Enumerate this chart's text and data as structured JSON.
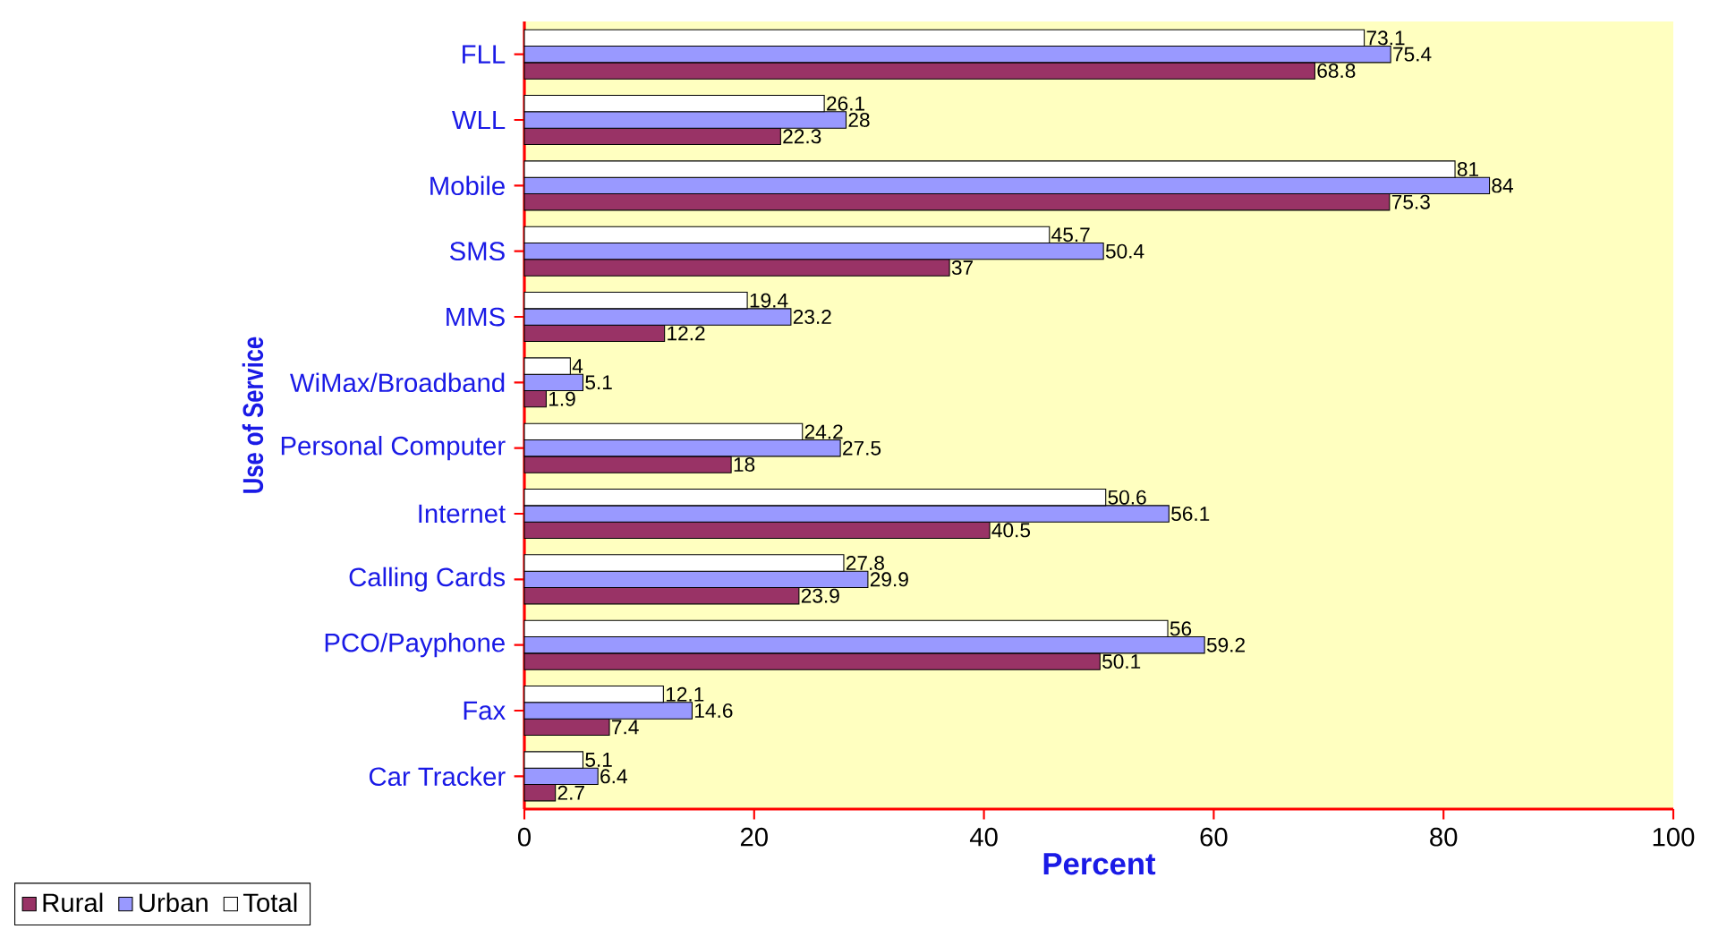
{
  "chart_data": {
    "type": "bar",
    "orientation": "horizontal",
    "categories": [
      "FLL",
      "WLL",
      "Mobile",
      "SMS",
      "MMS",
      "WiMax/Broadband",
      "Personal Computer",
      "Internet",
      "Calling Cards",
      "PCO/Payphone",
      "Fax",
      "Car Tracker"
    ],
    "series": [
      {
        "name": "Rural",
        "color": "#993366",
        "values": [
          68.8,
          22.3,
          75.3,
          37,
          12.2,
          1.9,
          18,
          40.5,
          23.9,
          50.1,
          7.4,
          2.7
        ]
      },
      {
        "name": "Urban",
        "color": "#9999ff",
        "values": [
          75.4,
          28,
          84,
          50.4,
          23.2,
          5.1,
          27.5,
          56.1,
          29.9,
          59.2,
          14.6,
          6.4
        ]
      },
      {
        "name": "Total",
        "color": "#ffffff",
        "values": [
          73.1,
          26.1,
          81,
          45.7,
          19.4,
          4,
          24.2,
          50.6,
          27.8,
          56,
          12.1,
          5.1
        ]
      }
    ],
    "xlim": [
      0,
      100
    ],
    "xticks": [
      0,
      20,
      40,
      60,
      80,
      100
    ],
    "xlabel": "Percent",
    "ylabel": "Use of Service",
    "data_labels": true,
    "legend": "bottom left"
  }
}
